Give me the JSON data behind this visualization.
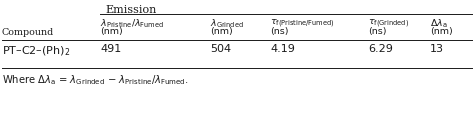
{
  "bg_color": "#ffffff",
  "text_color": "#1a1a1a",
  "emission_label": "Emission",
  "compound_col": "Compound",
  "col1_h1": "$\\lambda_{\\mathrm{Pristine}}/\\lambda_{\\mathrm{Fumed}}$",
  "col1_h2": "(nm)",
  "col2_h1": "$\\lambda_{\\mathrm{Grinded}}$",
  "col2_h2": "(nm)",
  "col3_h1": "$\\tau_{\\mathrm{f(Pristine/Fumed)}}$",
  "col3_h2": "(ns)",
  "col4_h1": "$\\tau_{\\mathrm{f(Grinded)}}$",
  "col4_h2": "(ns)",
  "col5_h1": "$\\Delta\\lambda_{\\mathrm{a}}$",
  "col5_h2": "(nm)",
  "row_label": "PT–C2–(Ph)$_2$",
  "row_data": [
    "491",
    "504",
    "4.19",
    "6.29",
    "13"
  ],
  "footnote": "Where $\\Delta\\lambda_{\\mathrm{a}}$ = $\\lambda_{\\mathrm{Grinded}}$ $-$ $\\lambda_{\\mathrm{Pristine}}/\\lambda_{\\mathrm{Fumed}}$.",
  "figw": 4.74,
  "figh": 1.19,
  "dpi": 100
}
